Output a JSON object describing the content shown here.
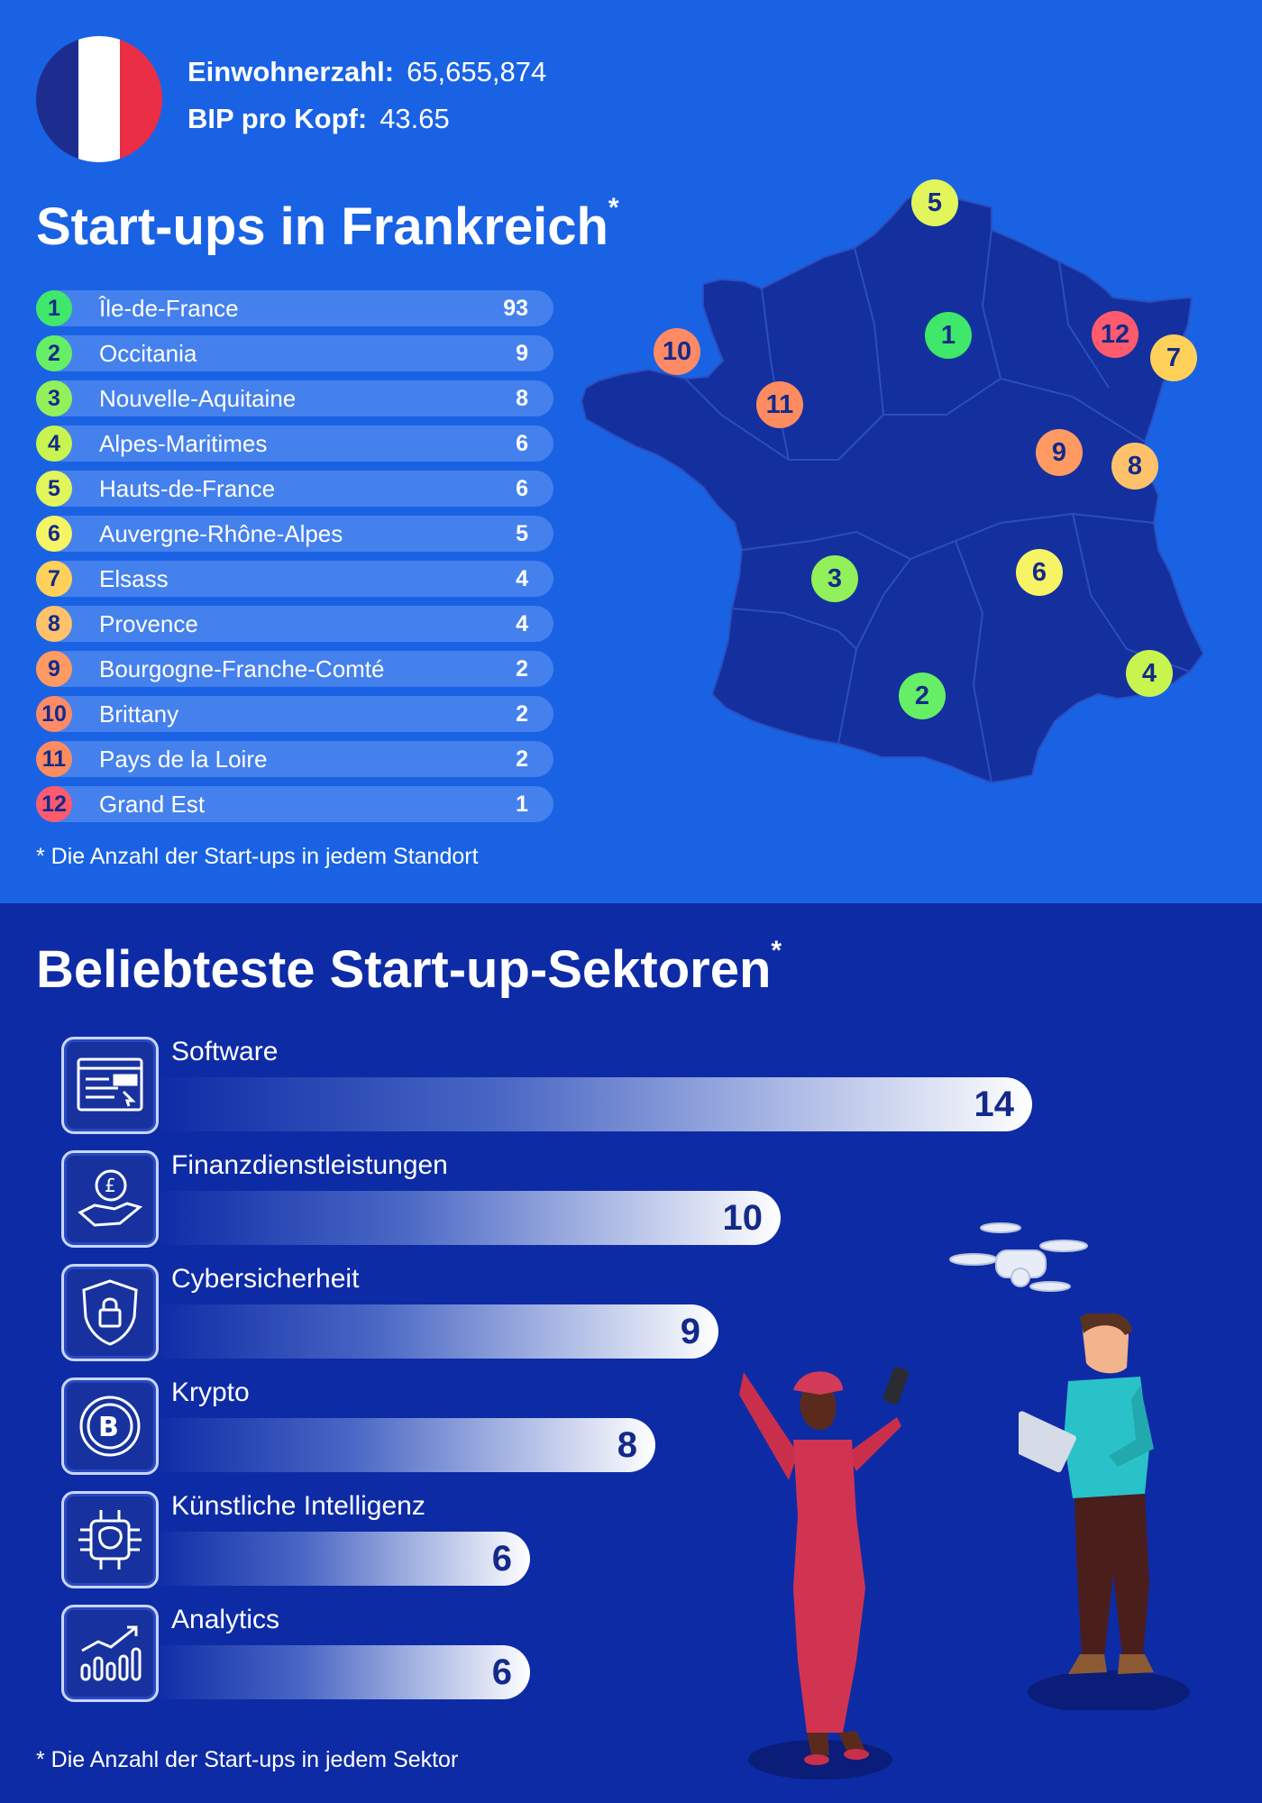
{
  "stats": {
    "population_label": "Einwohnerzahl:",
    "population_value": "65,655,874",
    "gdp_label": "BIP pro Kopf:",
    "gdp_value": "43.65"
  },
  "flag_colors": [
    "#1c2d8f",
    "#ffffff",
    "#ea2e45"
  ],
  "region_colors": [
    "#3fe76a",
    "#66ef66",
    "#92f05a",
    "#c8f44f",
    "#e2f55b",
    "#f6f464",
    "#ffd15a",
    "#ffc26a",
    "#ff9a62",
    "#ff8a66",
    "#ff8b60",
    "#ff5a6e"
  ],
  "sectors_title": "Beliebteste Start-up-Sektoren",
  "chart_data": [
    {
      "type": "table",
      "title": "Start-ups in Frankreich",
      "title_mark": "*",
      "rows": [
        {
          "rank": "1",
          "region": "Île-de-France",
          "value": 93
        },
        {
          "rank": "2",
          "region": "Occitania",
          "value": 9
        },
        {
          "rank": "3",
          "region": "Nouvelle-Aquitaine",
          "value": 8
        },
        {
          "rank": "4",
          "region": "Alpes-Maritimes",
          "value": 6
        },
        {
          "rank": "5",
          "region": "Hauts-de-France",
          "value": 6
        },
        {
          "rank": "6",
          "region": "Auvergne-Rhône-Alpes",
          "value": 5
        },
        {
          "rank": "7",
          "region": "Elsass",
          "value": 4
        },
        {
          "rank": "8",
          "region": "Provence",
          "value": 4
        },
        {
          "rank": "9",
          "region": "Bourgogne-Franche-Comté",
          "value": 2
        },
        {
          "rank": "10",
          "region": "Brittany",
          "value": 2
        },
        {
          "rank": "11",
          "region": "Pays de la Loire",
          "value": 2
        },
        {
          "rank": "12",
          "region": "Grand Est",
          "value": 1
        }
      ],
      "footnote": "* Die Anzahl der Start-ups in jedem Standort"
    },
    {
      "type": "bar",
      "title": "Beliebteste Start-up-Sektoren",
      "title_mark": "*",
      "orientation": "horizontal",
      "categories": [
        "Software",
        "Finanzdienstleistungen",
        "Cybersicherheit",
        "Krypto",
        "Künstliche Intelligenz",
        "Analytics"
      ],
      "icons": [
        "browser-window-icon",
        "pound-coin-hand-icon",
        "shield-lock-icon",
        "bitcoin-icon",
        "ai-chip-brain-icon",
        "growth-chart-icon"
      ],
      "values": [
        14,
        10,
        9,
        8,
        6,
        6
      ],
      "xlim": [
        0,
        14
      ],
      "footnote": "* Die Anzahl der Start-ups in jedem Sektor"
    }
  ]
}
